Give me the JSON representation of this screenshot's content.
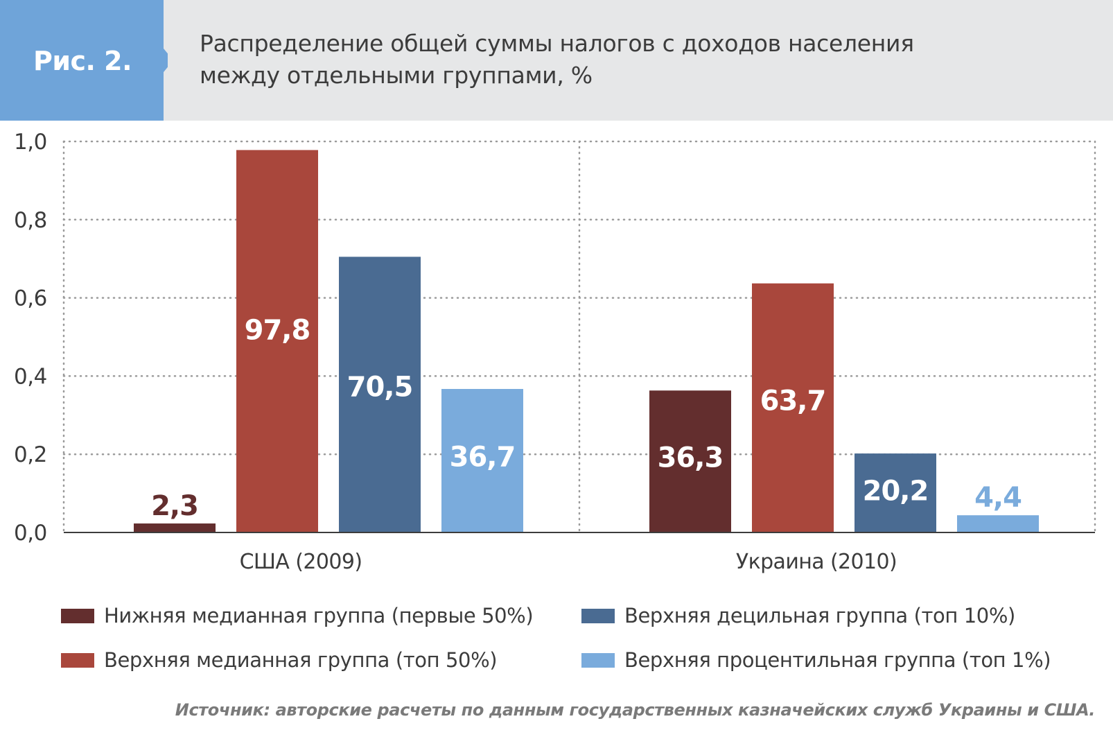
{
  "figure": {
    "label": "Рис. 2.",
    "title_line1": "Распределение общей суммы налогов с доходов населения",
    "title_line2": "между отдельными группами, %"
  },
  "colors": {
    "header_bg": "#e6e7e8",
    "tag_blue": "#6fa4d9"
  },
  "chart_data": {
    "type": "bar",
    "title": "Распределение общей суммы налогов с доходов населения между отдельными группами, %",
    "categories": [
      "США (2009)",
      "Украина (2010)"
    ],
    "yticks": [
      "0,0",
      "0,2",
      "0,4",
      "0,6",
      "0,8",
      "1,0"
    ],
    "ylim": [
      0,
      1.0
    ],
    "grid": true,
    "legend_position": "bottom",
    "series": [
      {
        "name": "Нижняя медианная группа (первые 50%)",
        "color": "#632e2e",
        "values": [
          0.023,
          0.363
        ],
        "labels": [
          "2,3",
          "36,3"
        ]
      },
      {
        "name": "Верхняя медианная группа (топ 50%)",
        "color": "#a9473c",
        "values": [
          0.978,
          0.637
        ],
        "labels": [
          "97,8",
          "63,7"
        ]
      },
      {
        "name": "Верхняя децильная группа (топ 10%)",
        "color": "#4a6b92",
        "values": [
          0.705,
          0.202
        ],
        "labels": [
          "70,5",
          "20,2"
        ]
      },
      {
        "name": "Верхняя процентильная группа (топ 1%)",
        "color": "#7aabdc",
        "values": [
          0.367,
          0.044
        ],
        "labels": [
          "36,7",
          "4,4"
        ]
      }
    ]
  },
  "source": "Источник: авторские расчеты по данным государственных казначейских служб Украины и США."
}
